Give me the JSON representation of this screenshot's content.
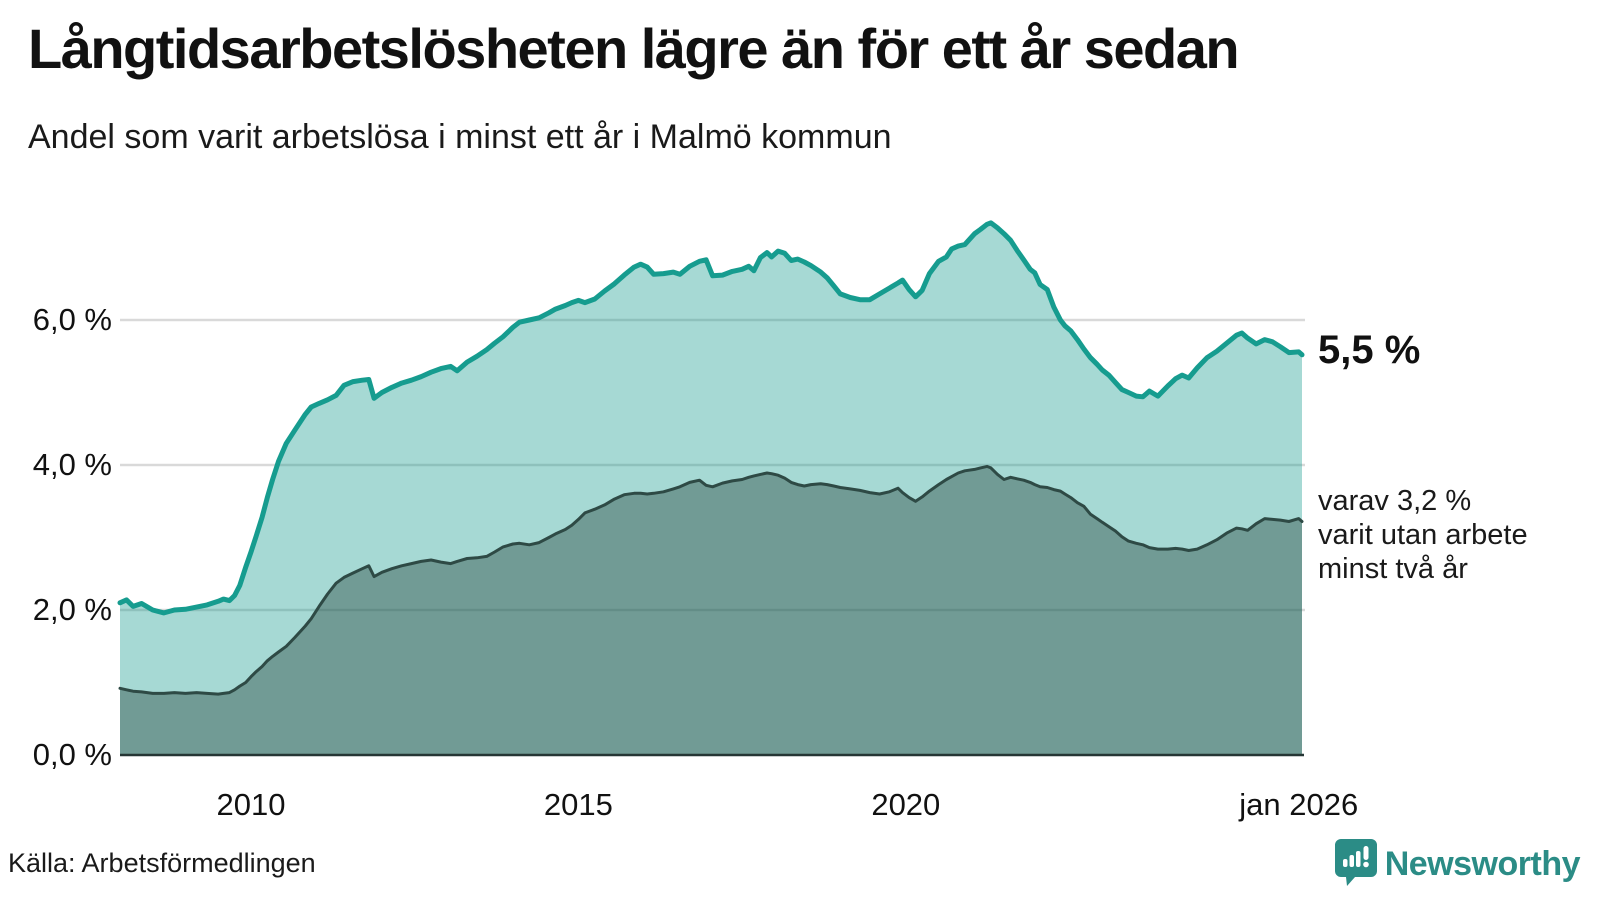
{
  "title": "Långtidsarbetslösheten lägre än för ett år sedan",
  "subtitle": "Andel som varit arbetslösa i minst ett år i Malmö kommun",
  "source": "Källa: Arbetsförmedlingen",
  "logo": {
    "text": "Newsworthy",
    "icon": "bar-chart-speech-bubble-icon"
  },
  "annotations": {
    "latest_total": "5,5 %",
    "secondary_lines": [
      "varav 3,2 %",
      "varit utan arbete",
      "minst två år"
    ]
  },
  "colors": {
    "line_total": "#169c8f",
    "fill_total": "rgba(22,156,143,0.38)",
    "line_two_year": "#2e4a45",
    "fill_two_year": "rgba(46,74,69,0.44)",
    "gridline": "#d9d9d9",
    "baseline": "#253634",
    "text": "#1a1a1a",
    "logo": "#2b8c86"
  },
  "chart_data": {
    "type": "area",
    "title": "Långtidsarbetslösheten lägre än för ett år sedan",
    "subtitle": "Andel som varit arbetslösa i minst ett år i Malmö kommun",
    "unit": "%",
    "xlim": [
      2008.0,
      2026.05
    ],
    "ylim": [
      0,
      7.6
    ],
    "grid": true,
    "legend_position": "none",
    "y_ticks": [
      {
        "v": 6,
        "label": "6,0 %"
      },
      {
        "v": 4,
        "label": "4,0 %"
      },
      {
        "v": 2,
        "label": "2,0 %"
      },
      {
        "v": 0,
        "label": "0,0 %"
      }
    ],
    "x_ticks": [
      {
        "t": 2010.0,
        "label": "2010"
      },
      {
        "t": 2015.0,
        "label": "2015"
      },
      {
        "t": 2020.0,
        "label": "2020"
      },
      {
        "t": 2026.0,
        "label": "jan 2026"
      }
    ],
    "series": [
      {
        "name": "Arbetslösa minst ett år",
        "latest_value": 5.5,
        "latest_label": "5,5 %"
      },
      {
        "name": "varav utan arbete minst två år",
        "latest_value": 3.2,
        "latest_label": "3,2 %"
      }
    ],
    "points": [
      [
        2008.0,
        2.1,
        0.92
      ],
      [
        2008.1,
        2.14,
        0.9
      ],
      [
        2008.2,
        2.05,
        0.88
      ],
      [
        2008.33,
        2.09,
        0.87
      ],
      [
        2008.5,
        2.0,
        0.85
      ],
      [
        2008.67,
        1.96,
        0.85
      ],
      [
        2008.83,
        2.0,
        0.86
      ],
      [
        2009.0,
        2.01,
        0.85
      ],
      [
        2009.17,
        2.04,
        0.86
      ],
      [
        2009.33,
        2.07,
        0.85
      ],
      [
        2009.5,
        2.12,
        0.84
      ],
      [
        2009.58,
        2.15,
        0.85
      ],
      [
        2009.67,
        2.13,
        0.86
      ],
      [
        2009.75,
        2.2,
        0.9
      ],
      [
        2009.83,
        2.34,
        0.95
      ],
      [
        2009.92,
        2.59,
        1.0
      ],
      [
        2010.0,
        2.8,
        1.08
      ],
      [
        2010.08,
        3.02,
        1.15
      ],
      [
        2010.17,
        3.28,
        1.22
      ],
      [
        2010.25,
        3.55,
        1.3
      ],
      [
        2010.33,
        3.8,
        1.36
      ],
      [
        2010.42,
        4.05,
        1.42
      ],
      [
        2010.54,
        4.3,
        1.5
      ],
      [
        2010.67,
        4.48,
        1.62
      ],
      [
        2010.83,
        4.7,
        1.78
      ],
      [
        2010.92,
        4.8,
        1.88
      ],
      [
        2011.04,
        4.85,
        2.05
      ],
      [
        2011.17,
        4.9,
        2.22
      ],
      [
        2011.3,
        4.96,
        2.37
      ],
      [
        2011.42,
        5.1,
        2.45
      ],
      [
        2011.56,
        5.15,
        2.51
      ],
      [
        2011.7,
        5.17,
        2.57
      ],
      [
        2011.8,
        5.18,
        2.61
      ],
      [
        2011.88,
        4.92,
        2.46
      ],
      [
        2012.0,
        5.0,
        2.52
      ],
      [
        2012.15,
        5.07,
        2.57
      ],
      [
        2012.3,
        5.13,
        2.61
      ],
      [
        2012.45,
        5.17,
        2.64
      ],
      [
        2012.6,
        5.22,
        2.67
      ],
      [
        2012.75,
        5.28,
        2.69
      ],
      [
        2012.9,
        5.33,
        2.66
      ],
      [
        2013.05,
        5.36,
        2.64
      ],
      [
        2013.15,
        5.3,
        2.67
      ],
      [
        2013.3,
        5.42,
        2.71
      ],
      [
        2013.45,
        5.5,
        2.72
      ],
      [
        2013.6,
        5.59,
        2.74
      ],
      [
        2013.72,
        5.68,
        2.8
      ],
      [
        2013.85,
        5.77,
        2.87
      ],
      [
        2014.0,
        5.9,
        2.91
      ],
      [
        2014.1,
        5.97,
        2.92
      ],
      [
        2014.25,
        6.0,
        2.9
      ],
      [
        2014.4,
        6.03,
        2.93
      ],
      [
        2014.55,
        6.1,
        3.0
      ],
      [
        2014.65,
        6.15,
        3.05
      ],
      [
        2014.8,
        6.2,
        3.11
      ],
      [
        2014.9,
        6.24,
        3.17
      ],
      [
        2015.0,
        6.27,
        3.25
      ],
      [
        2015.1,
        6.24,
        3.34
      ],
      [
        2015.25,
        6.29,
        3.39
      ],
      [
        2015.4,
        6.4,
        3.45
      ],
      [
        2015.55,
        6.5,
        3.53
      ],
      [
        2015.7,
        6.62,
        3.59
      ],
      [
        2015.85,
        6.73,
        3.61
      ],
      [
        2015.95,
        6.77,
        3.61
      ],
      [
        2016.05,
        6.73,
        3.6
      ],
      [
        2016.15,
        6.63,
        3.61
      ],
      [
        2016.3,
        6.64,
        3.63
      ],
      [
        2016.45,
        6.66,
        3.67
      ],
      [
        2016.55,
        6.63,
        3.7
      ],
      [
        2016.7,
        6.74,
        3.76
      ],
      [
        2016.85,
        6.81,
        3.79
      ],
      [
        2016.95,
        6.83,
        3.72
      ],
      [
        2017.05,
        6.61,
        3.7
      ],
      [
        2017.2,
        6.62,
        3.75
      ],
      [
        2017.35,
        6.67,
        3.78
      ],
      [
        2017.5,
        6.7,
        3.8
      ],
      [
        2017.6,
        6.74,
        3.83
      ],
      [
        2017.68,
        6.68,
        3.85
      ],
      [
        2017.78,
        6.86,
        3.87
      ],
      [
        2017.88,
        6.93,
        3.89
      ],
      [
        2017.95,
        6.87,
        3.88
      ],
      [
        2018.05,
        6.95,
        3.86
      ],
      [
        2018.15,
        6.92,
        3.82
      ],
      [
        2018.25,
        6.82,
        3.76
      ],
      [
        2018.35,
        6.84,
        3.73
      ],
      [
        2018.45,
        6.8,
        3.71
      ],
      [
        2018.55,
        6.75,
        3.73
      ],
      [
        2018.7,
        6.66,
        3.74
      ],
      [
        2018.8,
        6.58,
        3.73
      ],
      [
        2018.9,
        6.47,
        3.71
      ],
      [
        2019.0,
        6.36,
        3.69
      ],
      [
        2019.15,
        6.31,
        3.67
      ],
      [
        2019.3,
        6.28,
        3.65
      ],
      [
        2019.45,
        6.28,
        3.62
      ],
      [
        2019.6,
        6.36,
        3.6
      ],
      [
        2019.75,
        6.44,
        3.63
      ],
      [
        2019.88,
        6.51,
        3.68
      ],
      [
        2019.95,
        6.55,
        3.62
      ],
      [
        2020.05,
        6.42,
        3.55
      ],
      [
        2020.15,
        6.32,
        3.5
      ],
      [
        2020.25,
        6.41,
        3.56
      ],
      [
        2020.36,
        6.64,
        3.64
      ],
      [
        2020.5,
        6.81,
        3.73
      ],
      [
        2020.62,
        6.87,
        3.8
      ],
      [
        2020.7,
        6.98,
        3.84
      ],
      [
        2020.8,
        7.02,
        3.89
      ],
      [
        2020.9,
        7.04,
        3.92
      ],
      [
        2021.05,
        7.19,
        3.94
      ],
      [
        2021.14,
        7.25,
        3.96
      ],
      [
        2021.24,
        7.32,
        3.98
      ],
      [
        2021.3,
        7.34,
        3.96
      ],
      [
        2021.4,
        7.27,
        3.87
      ],
      [
        2021.5,
        7.19,
        3.8
      ],
      [
        2021.6,
        7.1,
        3.83
      ],
      [
        2021.7,
        6.96,
        3.81
      ],
      [
        2021.8,
        6.83,
        3.79
      ],
      [
        2021.9,
        6.7,
        3.76
      ],
      [
        2021.97,
        6.65,
        3.73
      ],
      [
        2022.05,
        6.49,
        3.7
      ],
      [
        2022.16,
        6.42,
        3.69
      ],
      [
        2022.26,
        6.18,
        3.66
      ],
      [
        2022.36,
        6.0,
        3.64
      ],
      [
        2022.43,
        5.92,
        3.6
      ],
      [
        2022.52,
        5.85,
        3.55
      ],
      [
        2022.62,
        5.73,
        3.48
      ],
      [
        2022.72,
        5.6,
        3.43
      ],
      [
        2022.82,
        5.48,
        3.32
      ],
      [
        2022.92,
        5.39,
        3.26
      ],
      [
        2023.0,
        5.31,
        3.21
      ],
      [
        2023.1,
        5.24,
        3.15
      ],
      [
        2023.2,
        5.14,
        3.09
      ],
      [
        2023.3,
        5.04,
        3.01
      ],
      [
        2023.4,
        5.0,
        2.95
      ],
      [
        2023.52,
        4.95,
        2.92
      ],
      [
        2023.62,
        4.94,
        2.9
      ],
      [
        2023.72,
        5.02,
        2.86
      ],
      [
        2023.85,
        4.95,
        2.84
      ],
      [
        2024.0,
        5.09,
        2.84
      ],
      [
        2024.12,
        5.19,
        2.85
      ],
      [
        2024.22,
        5.24,
        2.84
      ],
      [
        2024.32,
        5.2,
        2.82
      ],
      [
        2024.45,
        5.34,
        2.84
      ],
      [
        2024.6,
        5.48,
        2.9
      ],
      [
        2024.75,
        5.57,
        2.97
      ],
      [
        2024.9,
        5.68,
        3.06
      ],
      [
        2025.05,
        5.79,
        3.13
      ],
      [
        2025.13,
        5.82,
        3.12
      ],
      [
        2025.22,
        5.75,
        3.1
      ],
      [
        2025.35,
        5.67,
        3.19
      ],
      [
        2025.48,
        5.73,
        3.26
      ],
      [
        2025.6,
        5.7,
        3.25
      ],
      [
        2025.72,
        5.63,
        3.24
      ],
      [
        2025.85,
        5.55,
        3.22
      ],
      [
        2026.0,
        5.56,
        3.26
      ],
      [
        2026.05,
        5.52,
        3.22
      ]
    ]
  }
}
